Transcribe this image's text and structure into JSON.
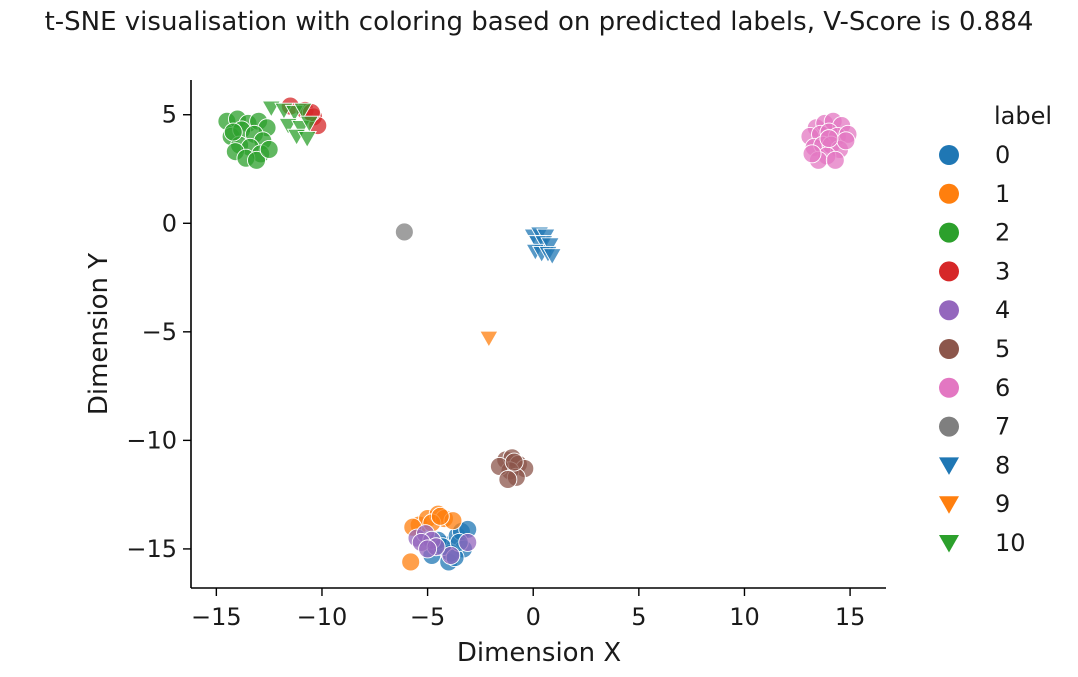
{
  "chart_data": {
    "type": "scatter",
    "title": "t-SNE visualisation with coloring based on predicted labels, V-Score is 0.884",
    "xlabel": "Dimension X",
    "ylabel": "Dimension Y",
    "xlim": [
      -16.2,
      16.7
    ],
    "ylim": [
      -16.8,
      6.6
    ],
    "xticks": [
      -15,
      -10,
      -5,
      0,
      5,
      10,
      15
    ],
    "xtick_labels": [
      "−15",
      "−10",
      "−5",
      "0",
      "5",
      "10",
      "15"
    ],
    "yticks": [
      5,
      0,
      -5,
      -10,
      -15
    ],
    "ytick_labels": [
      "5",
      "0",
      "−5",
      "−10",
      "−15"
    ],
    "grid": false,
    "legend": {
      "title": "label",
      "placement": "outside-right",
      "entries": [
        {
          "label": "0",
          "color": "#1f77b4",
          "marker": "circle"
        },
        {
          "label": "1",
          "color": "#ff7f0e",
          "marker": "circle"
        },
        {
          "label": "2",
          "color": "#2ca02c",
          "marker": "circle"
        },
        {
          "label": "3",
          "color": "#d62728",
          "marker": "circle"
        },
        {
          "label": "4",
          "color": "#9467bd",
          "marker": "circle"
        },
        {
          "label": "5",
          "color": "#8c564b",
          "marker": "circle"
        },
        {
          "label": "6",
          "color": "#e377c2",
          "marker": "circle"
        },
        {
          "label": "7",
          "color": "#7f7f7f",
          "marker": "circle"
        },
        {
          "label": "8",
          "color": "#1f77b4",
          "marker": "triangle-down"
        },
        {
          "label": "9",
          "color": "#ff7f0e",
          "marker": "triangle-down"
        },
        {
          "label": "10",
          "color": "#2ca02c",
          "marker": "triangle-down"
        }
      ]
    },
    "series": [
      {
        "name": "0",
        "color": "#1f77b4",
        "marker": "circle",
        "x": [
          -4.2,
          -3.6,
          -3.3,
          -4.8,
          -4.0,
          -3.4,
          -4.5,
          -3.9,
          -3.1,
          -4.3,
          -3.7,
          -3.5
        ],
        "y": [
          -14.8,
          -14.4,
          -15.0,
          -15.3,
          -15.6,
          -14.2,
          -14.6,
          -15.2,
          -14.1,
          -14.9,
          -15.4,
          -14.7
        ]
      },
      {
        "name": "1",
        "color": "#ff7f0e",
        "marker": "circle",
        "x": [
          -5.4,
          -5.0,
          -4.5,
          -4.2,
          -3.8,
          -5.7,
          -4.8,
          -4.4,
          -5.8
        ],
        "y": [
          -13.9,
          -13.6,
          -13.4,
          -13.6,
          -13.7,
          -14.0,
          -13.8,
          -13.5,
          -15.6
        ]
      },
      {
        "name": "2",
        "color": "#2ca02c",
        "marker": "circle",
        "x": [
          -14.5,
          -14.0,
          -13.5,
          -13.0,
          -12.6,
          -14.3,
          -13.8,
          -13.2,
          -12.8,
          -13.9,
          -13.4,
          -14.1,
          -12.9,
          -13.6,
          -13.1,
          -12.5,
          -14.2
        ],
        "y": [
          4.7,
          4.8,
          4.6,
          4.7,
          4.4,
          4.0,
          4.3,
          4.1,
          3.8,
          3.6,
          3.5,
          3.3,
          3.2,
          3.0,
          2.9,
          3.4,
          4.2
        ]
      },
      {
        "name": "3",
        "color": "#d62728",
        "marker": "circle",
        "x": [
          -11.5,
          -10.8,
          -10.4,
          -10.2,
          -10.5
        ],
        "y": [
          5.4,
          5.2,
          4.9,
          4.5,
          5.1
        ]
      },
      {
        "name": "4",
        "color": "#9467bd",
        "marker": "circle",
        "x": [
          -5.5,
          -5.1,
          -4.8,
          -5.3,
          -3.9,
          -3.1,
          -4.6,
          -5.0
        ],
        "y": [
          -14.5,
          -14.3,
          -14.6,
          -14.7,
          -15.3,
          -14.7,
          -14.9,
          -15.0
        ]
      },
      {
        "name": "5",
        "color": "#8c564b",
        "marker": "circle",
        "x": [
          -1.3,
          -1.0,
          -0.7,
          -0.4,
          -1.1,
          -0.8,
          -1.6,
          -0.9,
          -1.2
        ],
        "y": [
          -10.9,
          -10.8,
          -11.1,
          -11.3,
          -11.4,
          -11.7,
          -11.2,
          -11.0,
          -11.8
        ]
      },
      {
        "name": "6",
        "color": "#e377c2",
        "marker": "circle",
        "x": [
          13.4,
          13.8,
          14.2,
          14.6,
          13.1,
          13.6,
          14.0,
          14.4,
          14.9,
          13.3,
          13.7,
          14.1,
          14.5,
          13.9,
          13.5,
          14.3,
          14.8,
          13.2,
          14.0
        ],
        "y": [
          4.4,
          4.6,
          4.7,
          4.5,
          4.0,
          4.1,
          4.2,
          4.0,
          4.1,
          3.5,
          3.6,
          3.6,
          3.4,
          3.1,
          2.9,
          2.9,
          3.8,
          3.2,
          3.9
        ]
      },
      {
        "name": "7",
        "color": "#7f7f7f",
        "marker": "circle",
        "x": [
          -6.1
        ],
        "y": [
          -0.4
        ]
      },
      {
        "name": "8",
        "color": "#1f77b4",
        "marker": "triangle-down",
        "x": [
          0.0,
          0.3,
          0.6,
          0.2,
          0.5,
          0.8,
          0.1,
          0.4,
          0.7,
          0.9
        ],
        "y": [
          -0.6,
          -0.5,
          -0.6,
          -0.9,
          -0.9,
          -1.0,
          -1.3,
          -1.4,
          -1.4,
          -1.5
        ]
      },
      {
        "name": "9",
        "color": "#ff7f0e",
        "marker": "triangle-down",
        "x": [
          -2.1
        ],
        "y": [
          -5.3
        ]
      },
      {
        "name": "10",
        "color": "#2ca02c",
        "marker": "triangle-down",
        "x": [
          -12.4,
          -11.8,
          -11.3,
          -10.9,
          -11.6,
          -11.0,
          -10.6,
          -11.2,
          -10.7
        ],
        "y": [
          5.3,
          5.2,
          5.1,
          5.2,
          4.5,
          4.4,
          4.6,
          4.0,
          3.9
        ]
      }
    ]
  }
}
